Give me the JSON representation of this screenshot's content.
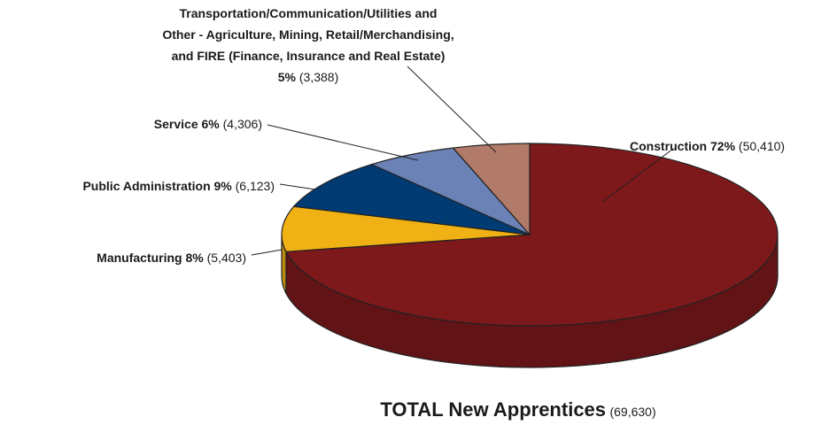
{
  "chart_data": {
    "type": "pie",
    "categories": [
      "Construction",
      "Manufacturing",
      "Public Administration",
      "Service",
      "Transportation/Communication/Utilities and Other - Agriculture, Mining, Retail/Merchandising, and FIRE (Finance, Insurance and Real Estate)"
    ],
    "values": [
      72,
      8,
      9,
      6,
      5
    ],
    "value_labels": [
      "72%",
      "8%",
      "9%",
      "6%",
      "5%"
    ],
    "counts": [
      50410,
      5403,
      6123,
      4306,
      3388
    ],
    "count_labels": [
      "(50,410)",
      "(5,403)",
      "(6,123)",
      "(4,306)",
      "(3,388)"
    ],
    "colors": [
      "#7d181b",
      "#f0b114",
      "#003b74",
      "#6a82b5",
      "#b17a69"
    ],
    "total_title": "TOTAL New Apprentices",
    "total": 69630,
    "total_label": "(69,630)"
  }
}
